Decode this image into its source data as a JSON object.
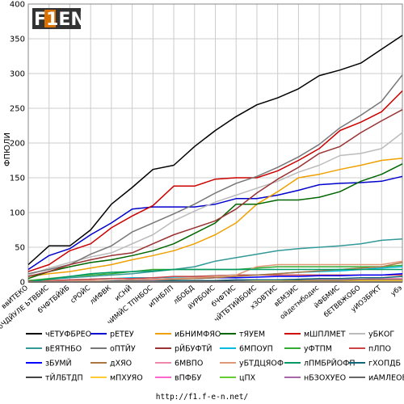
{
  "logo_text": "F1EN",
  "footer_url": "http://f1.f-e-n.net/",
  "chart_data": {
    "type": "line",
    "ylabel": "ФПЮЛИ",
    "ylim": [
      0,
      400
    ],
    "yticks": [
      0,
      50,
      100,
      150,
      200,
      250,
      300,
      350,
      400
    ],
    "grid": true,
    "legend_position": "bottom",
    "categories": [
      "ввИТЕКО",
      "бЧДЙУЛЕ ЬТВБИС",
      "бЧФТБЙЙБ",
      "сРОЙС",
      "лИФВК",
      "иСНЙ",
      "чИМЙС ТПНБОС",
      "иПНБЛП",
      "лБОБД",
      "йУРБОИС",
      "бЧФТИС",
      "чЙТБТИЙБОИС",
      "хЗОВТИС",
      "вЕМЗИС",
      "ойдетмбодис",
      "йФБМИС",
      "бЕТВВЖОБО",
      "уИОЗБРКТ",
      "убэ"
    ],
    "series": [
      {
        "name": "чЕТУФБРЕО",
        "color": "#000000",
        "values": [
          25,
          52,
          52,
          75,
          112,
          136,
          162,
          168,
          195,
          218,
          238,
          255,
          265,
          278,
          297,
          305,
          315,
          335,
          355
        ]
      },
      {
        "name": "рЕТЕУ",
        "color": "#0000cc",
        "values": [
          18,
          38,
          48,
          68,
          85,
          105,
          108,
          108,
          108,
          112,
          120,
          120,
          125,
          132,
          140,
          142,
          143,
          145,
          152
        ]
      },
      {
        "name": "иБНИМФЯО",
        "color": "#f0a000",
        "values": [
          8,
          12,
          15,
          20,
          25,
          32,
          38,
          45,
          55,
          68,
          85,
          112,
          130,
          150,
          155,
          162,
          168,
          175,
          178
        ]
      },
      {
        "name": "тЯУЕМ",
        "color": "#006600",
        "values": [
          5,
          15,
          22,
          28,
          32,
          38,
          45,
          55,
          70,
          85,
          112,
          112,
          118,
          118,
          122,
          130,
          145,
          155,
          170
        ]
      },
      {
        "name": "мШПЛМЕТ",
        "color": "#cc0000",
        "values": [
          15,
          25,
          45,
          55,
          78,
          95,
          110,
          138,
          138,
          148,
          150,
          150,
          160,
          175,
          192,
          218,
          230,
          245,
          275
        ]
      },
      {
        "name": "уБКОГ",
        "color": "#bbbbbb",
        "values": [
          10,
          20,
          28,
          36,
          42,
          55,
          68,
          88,
          102,
          115,
          125,
          135,
          145,
          158,
          168,
          182,
          185,
          192,
          215
        ]
      },
      {
        "name": "вЕЯТНБО",
        "color": "#339999",
        "values": [
          2,
          4,
          6,
          8,
          10,
          12,
          15,
          18,
          22,
          30,
          35,
          40,
          45,
          48,
          50,
          52,
          55,
          60,
          62
        ]
      },
      {
        "name": "оПТЙУ",
        "color": "#777777",
        "values": [
          12,
          18,
          25,
          40,
          52,
          72,
          85,
          98,
          112,
          128,
          142,
          152,
          165,
          180,
          198,
          222,
          240,
          260,
          298
        ]
      },
      {
        "name": "рЙБУФТЙ",
        "color": "#993333",
        "values": [
          8,
          15,
          25,
          32,
          38,
          42,
          55,
          68,
          78,
          88,
          105,
          128,
          148,
          165,
          185,
          195,
          215,
          232,
          248
        ]
      },
      {
        "name": "6МПОУП",
        "color": "#00bbdd",
        "values": [
          0,
          2,
          3,
          4,
          5,
          6,
          6,
          7,
          8,
          9,
          10,
          10,
          12,
          14,
          15,
          16,
          18,
          20,
          22
        ]
      },
      {
        "name": "уФТПМ",
        "color": "#33aa33",
        "values": [
          2,
          5,
          8,
          10,
          12,
          15,
          18,
          18,
          18,
          18,
          18,
          20,
          22,
          22,
          22,
          22,
          22,
          22,
          24
        ]
      },
      {
        "name": "пЛПО",
        "color": "#cc4444",
        "values": [
          1,
          2,
          3,
          4,
          5,
          5,
          6,
          8,
          8,
          9,
          10,
          10,
          10,
          10,
          10,
          10,
          10,
          10,
          10
        ]
      },
      {
        "name": "зБУМЙ",
        "color": "#0000ff",
        "values": [
          0,
          0,
          0,
          0,
          2,
          3,
          4,
          5,
          5,
          6,
          6,
          7,
          8,
          8,
          9,
          9,
          10,
          10,
          12
        ]
      },
      {
        "name": "дХЯО",
        "color": "#aa7744",
        "values": [
          0,
          0,
          1,
          1,
          2,
          2,
          3,
          4,
          5,
          6,
          8,
          10,
          12,
          14,
          16,
          18,
          20,
          22,
          28
        ]
      },
      {
        "name": "6МВПО",
        "color": "#ee88aa",
        "values": [
          0,
          0,
          0,
          1,
          1,
          1,
          2,
          2,
          2,
          2,
          3,
          3,
          3,
          4,
          4,
          4,
          4,
          5,
          5
        ]
      },
      {
        "name": "уБТДЦЯОФ",
        "color": "#dd9977",
        "values": [
          0,
          1,
          1,
          2,
          2,
          3,
          4,
          5,
          6,
          8,
          10,
          22,
          25,
          25,
          25,
          25,
          25,
          25,
          30
        ]
      },
      {
        "name": "лПМБРЙОФП",
        "color": "#009966",
        "values": [
          0,
          4,
          8,
          12,
          14,
          15,
          16,
          18,
          18,
          18,
          18,
          18,
          18,
          18,
          18,
          18,
          18,
          18,
          18
        ]
      },
      {
        "name": "гХОПДБ",
        "color": "#116677",
        "values": [
          0,
          0,
          0,
          0,
          1,
          1,
          1,
          2,
          2,
          2,
          3,
          3,
          3,
          4,
          5,
          5,
          6,
          6,
          8
        ]
      },
      {
        "name": "тЙЛБТДП",
        "color": "#444444",
        "values": [
          0,
          0,
          0,
          0,
          0,
          0,
          0,
          0,
          1,
          1,
          1,
          1,
          1,
          2,
          2,
          2,
          3,
          3,
          3
        ]
      },
      {
        "name": "мПХУЯО",
        "color": "#ffcc33",
        "values": [
          0,
          0,
          0,
          0,
          0,
          0,
          0,
          0,
          0,
          0,
          0,
          1,
          1,
          1,
          1,
          1,
          2,
          2,
          2
        ]
      },
      {
        "name": "вПФБУ",
        "color": "#ff66cc",
        "values": [
          0,
          0,
          0,
          0,
          0,
          0,
          0,
          0,
          0,
          0,
          0,
          0,
          0,
          0,
          0,
          0,
          0,
          0,
          0
        ]
      },
      {
        "name": "цПХ",
        "color": "#66cc33",
        "values": [
          0,
          0,
          0,
          0,
          0,
          0,
          0,
          0,
          0,
          0,
          0,
          0,
          0,
          0,
          0,
          0,
          0,
          0,
          0
        ]
      },
      {
        "name": "нБЗОХУЕО",
        "color": "#aa66aa",
        "values": [
          0,
          0,
          0,
          0,
          0,
          0,
          0,
          0,
          0,
          0,
          0,
          0,
          0,
          0,
          0,
          0,
          0,
          0,
          0
        ]
      },
      {
        "name": "иАМЛЕОВЕТЗ",
        "color": "#666666",
        "values": [
          0,
          0,
          0,
          0,
          0,
          0,
          0,
          0,
          0,
          0,
          0,
          0,
          0,
          0,
          0,
          0,
          0,
          0,
          0
        ]
      }
    ]
  }
}
